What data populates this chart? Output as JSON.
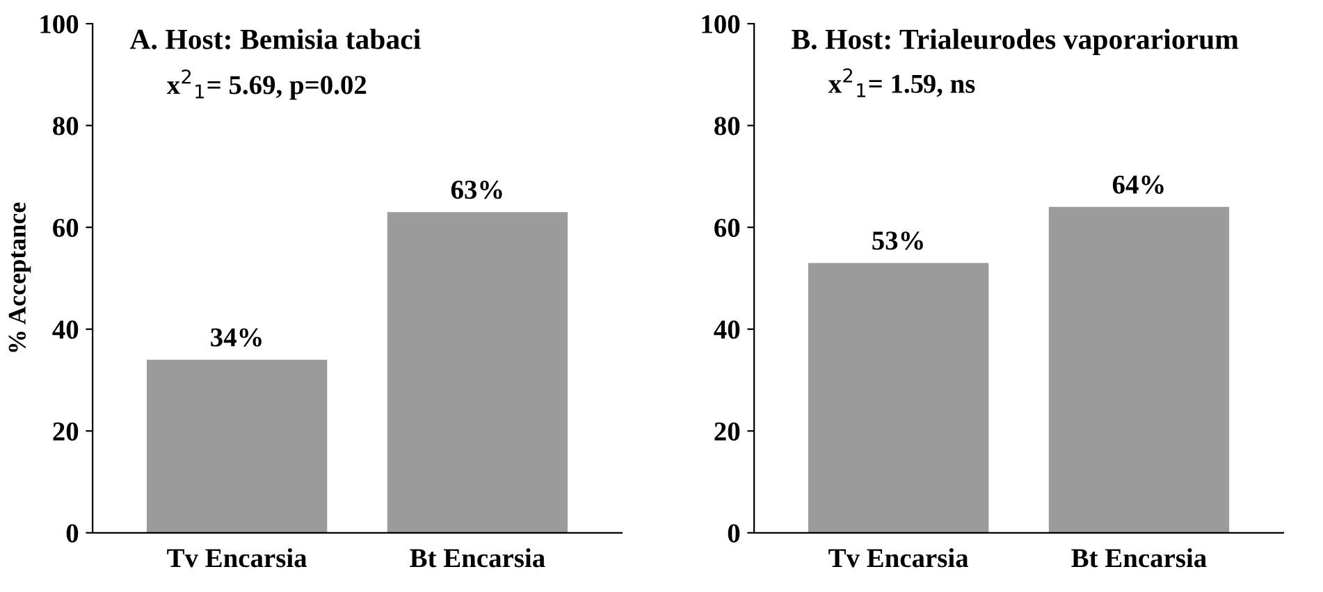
{
  "chart_data": [
    {
      "type": "bar",
      "title": "A. Host: Bemisia tabaci",
      "ylabel": "% Acceptance",
      "annotations": [
        "x$^{2}$$_{1}$= 5.69, p=0.02"
      ],
      "categories": [
        "Tv Encarsia",
        "Bt Encarsia"
      ],
      "values": [
        34,
        63
      ],
      "value_labels": [
        "34%",
        "63%"
      ],
      "color": "#9b9b9b",
      "ylim": [
        0,
        100
      ],
      "yticks": [
        0,
        20,
        40,
        60,
        80,
        100
      ],
      "grid": false,
      "legend": false
    },
    {
      "type": "bar",
      "title": "B. Host: Trialeurodes vaporariorum",
      "annotations": [
        "x$^{2}$$_{1}$= 1.59, ns"
      ],
      "categories": [
        "Tv Encarsia",
        "Bt Encarsia"
      ],
      "values": [
        53,
        64
      ],
      "value_labels": [
        "53%",
        "64%"
      ],
      "color": "#9b9b9b",
      "ylim": [
        0,
        100
      ],
      "yticks": [
        0,
        20,
        40,
        60,
        80,
        100
      ],
      "grid": false,
      "legend": false
    }
  ]
}
